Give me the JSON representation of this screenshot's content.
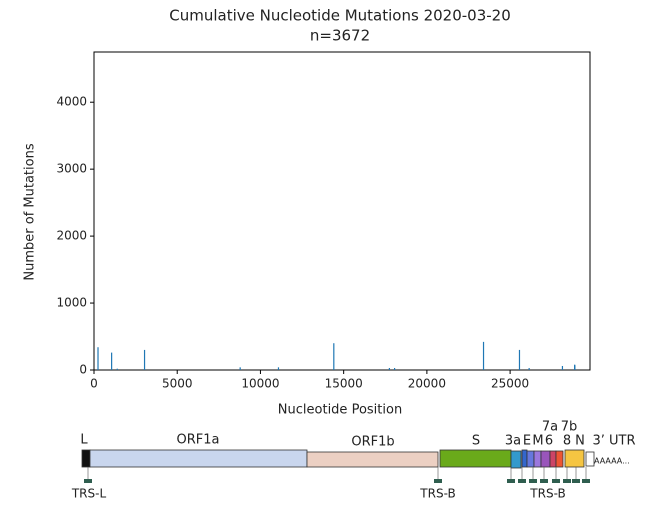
{
  "chart_data": {
    "type": "bar",
    "title": "Cumulative Nucleotide Mutations 2020-03-20",
    "subtitle": "n=3672",
    "x_label": "Nucleotide  Position",
    "y_label": "Number of Mutations",
    "x": [
      241,
      1059,
      1397,
      3037,
      8782,
      11083,
      14408,
      17747,
      18060,
      23403,
      25563,
      26144,
      28144,
      28881,
      28882,
      28883
    ],
    "values": [
      340,
      260,
      20,
      300,
      40,
      40,
      400,
      30,
      30,
      420,
      300,
      30,
      60,
      80,
      70,
      70
    ],
    "color": "#1f77b4",
    "xlim": [
      0,
      29800
    ],
    "ylim": [
      0,
      4750
    ],
    "xticks": [
      0,
      5000,
      10000,
      15000,
      20000,
      25000
    ],
    "yticks": [
      0,
      1000,
      2000,
      3000,
      4000
    ]
  },
  "genome_map": {
    "segments": [
      "L",
      "ORF1a",
      "ORF1b",
      "S",
      "3a",
      "E",
      "M",
      "6",
      "7a",
      "7b",
      "8",
      "N",
      "3’ UTR"
    ],
    "poly_a": "AAAAA...",
    "trs_labels": [
      "TRS-L",
      "TRS-B",
      "TRS-B"
    ]
  }
}
